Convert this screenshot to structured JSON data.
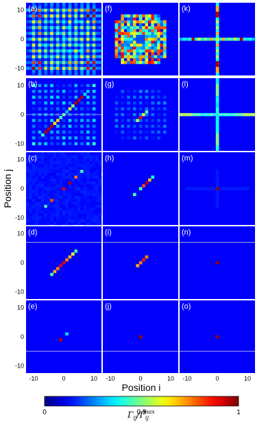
{
  "chart_data": {
    "type": "heatmap",
    "layout": {
      "rows": 5,
      "cols": 3
    },
    "xlabel": "Position  i",
    "ylabel": "Position  j",
    "xlim": [
      -12,
      12
    ],
    "ylim": [
      -12,
      12
    ],
    "xticks": [
      -10,
      0,
      10
    ],
    "yticks": [
      -10,
      0,
      10
    ],
    "colorbar": {
      "label": "Γij/Γij^max",
      "label_main": "Γ",
      "label_sub": "ij",
      "label_slash": "/",
      "label_main2": "Γ",
      "label_sub2": "ij",
      "label_sup2": "max",
      "range": [
        0,
        1
      ],
      "ticks": [
        "0",
        "0.5",
        "1"
      ],
      "colormap": "jet"
    },
    "panels": [
      {
        "label": "(a)",
        "pattern": "grid_full",
        "hline": null
      },
      {
        "label": "(b)",
        "pattern": "grid_diag",
        "hline": 0
      },
      {
        "label": "(c)",
        "pattern": "diag_mid",
        "hline": null
      },
      {
        "label": "(d)",
        "pattern": "diag_short",
        "hline": 7
      },
      {
        "label": "(e)",
        "pattern": "diag_tiny",
        "hline": -5
      },
      {
        "label": "(f)",
        "pattern": "blob_cross",
        "hline": null
      },
      {
        "label": "(g)",
        "pattern": "blob_faint",
        "hline": null
      },
      {
        "label": "(h)",
        "pattern": "diag_mid2",
        "hline": null
      },
      {
        "label": "(i)",
        "pattern": "diag_short2",
        "hline": 7
      },
      {
        "label": "(j)",
        "pattern": "center_only",
        "hline": -5
      },
      {
        "label": "(k)",
        "pattern": "cross_bright",
        "hline": null
      },
      {
        "label": "(l)",
        "pattern": "cross_mid",
        "hline": 0
      },
      {
        "label": "(m)",
        "pattern": "center_faint",
        "hline": null
      },
      {
        "label": "(n)",
        "pattern": "center_only",
        "hline": 7
      },
      {
        "label": "(o)",
        "pattern": "center_only",
        "hline": -5
      }
    ]
  }
}
